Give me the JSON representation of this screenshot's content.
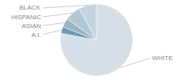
{
  "chart_data": {
    "type": "pie",
    "categories": [
      "WHITE",
      "A.I.",
      "ASIAN",
      "HISPANIC",
      "BLACK"
    ],
    "values": [
      78,
      3,
      4,
      7,
      8
    ],
    "colors": [
      "#d6dfe8",
      "#6e9ab5",
      "#9ab4c4",
      "#b0c8d5",
      "#c5d5de"
    ]
  }
}
